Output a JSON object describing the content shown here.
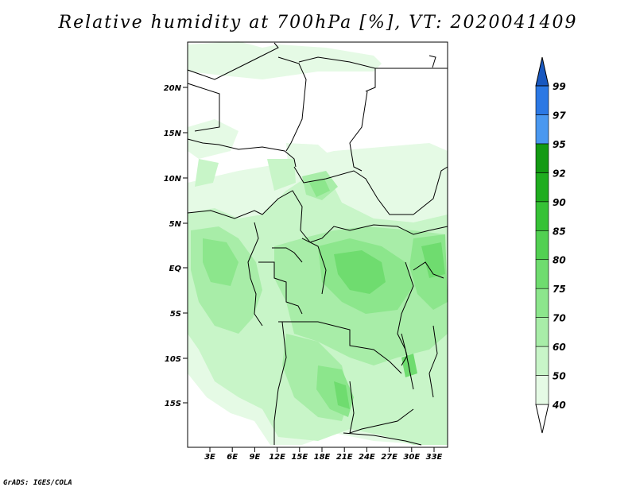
{
  "title": "Relative humidity at 700hPa [%], VT: 2020041409",
  "credit": "GrADS: IGES/COLA",
  "map": {
    "lon_range": [
      0,
      36
    ],
    "lat_range": [
      -20,
      25
    ],
    "lat_ticks": [
      "20N",
      "15N",
      "10N",
      "5N",
      "EQ",
      "5S",
      "10S",
      "15S"
    ],
    "lon_ticks": [
      "3E",
      "6E",
      "9E",
      "12E",
      "15E",
      "18E",
      "21E",
      "24E",
      "27E",
      "30E",
      "33E"
    ]
  },
  "colorbar": {
    "levels": [
      "40",
      "50",
      "60",
      "70",
      "75",
      "80",
      "85",
      "90",
      "92",
      "95",
      "97",
      "99"
    ],
    "colors": [
      "#ffffff",
      "#e5fae5",
      "#c8f5c8",
      "#a8eda8",
      "#8ce68c",
      "#6fdc6f",
      "#52d052",
      "#36c236",
      "#1fad1f",
      "#139a13",
      "#4a98f0",
      "#2b78e4",
      "#1858c0"
    ]
  }
}
